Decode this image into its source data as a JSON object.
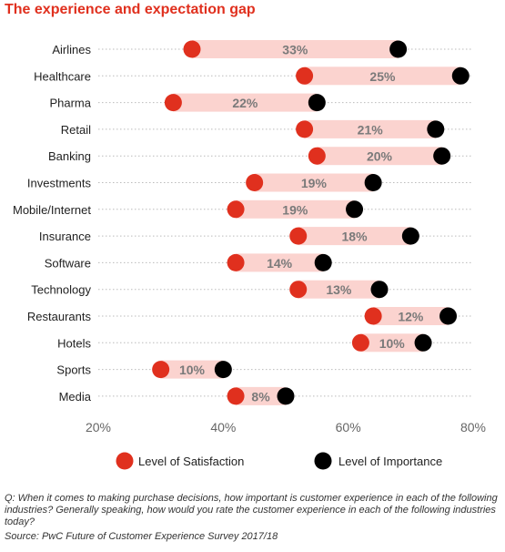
{
  "chart_data": {
    "type": "dumbbell",
    "title": "The experience and expectation gap",
    "categories": [
      "Airlines",
      "Healthcare",
      "Pharma",
      "Retail",
      "Banking",
      "Investments",
      "Mobile/Internet",
      "Insurance",
      "Software",
      "Technology",
      "Restaurants",
      "Hotels",
      "Sports",
      "Media"
    ],
    "series": [
      {
        "name": "Level of Satisfaction",
        "color": "#e0301e",
        "values": [
          35,
          53,
          32,
          53,
          55,
          45,
          42,
          52,
          42,
          52,
          64,
          62,
          30,
          42
        ]
      },
      {
        "name": "Level of Importance",
        "color": "#000000",
        "values": [
          68,
          78,
          55,
          74,
          75,
          64,
          61,
          70,
          56,
          65,
          76,
          72,
          40,
          50
        ]
      }
    ],
    "gap_labels": [
      "33%",
      "25%",
      "22%",
      "21%",
      "20%",
      "19%",
      "19%",
      "18%",
      "14%",
      "13%",
      "12%",
      "10%",
      "10%",
      "8%"
    ],
    "x_ticks": [
      "20%",
      "40%",
      "60%",
      "80%"
    ],
    "x_tick_values": [
      20,
      40,
      60,
      80
    ],
    "xlim": [
      20,
      80
    ],
    "grid": "horizontal dotted",
    "legend_position": "bottom"
  },
  "footnote": "Q: When it comes to making purchase decisions, how important is customer experience in each of the following industries? Generally speaking, how would you rate the customer experience in each of the following industries today?",
  "source": "Source: PwC Future of Customer Experience Survey 2017/18",
  "colors": {
    "title": "#e0301e",
    "bar": "#fbd3cf",
    "grid": "#bbbbbb"
  }
}
